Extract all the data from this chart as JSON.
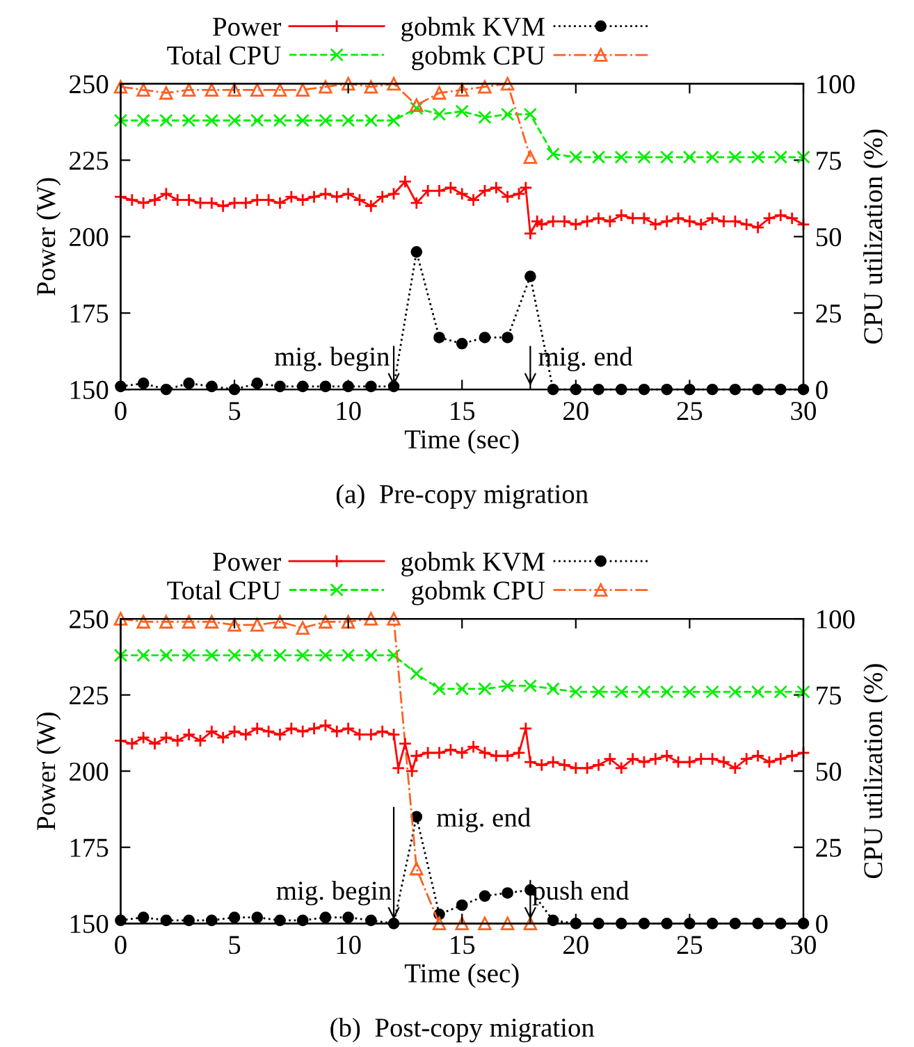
{
  "chart_data": [
    {
      "type": "line",
      "title": "(a)  Pre-copy migration",
      "xlabel": "Time (sec)",
      "ylabel": "Power (W)",
      "y2label": "CPU utilization (%)",
      "xlim": [
        0,
        30
      ],
      "xticks": [
        0,
        5,
        10,
        15,
        20,
        25,
        30
      ],
      "ylim": [
        150,
        250
      ],
      "yticks": [
        150,
        175,
        200,
        225,
        250
      ],
      "y2lim": [
        0,
        100
      ],
      "y2ticks": [
        0,
        25,
        50,
        75,
        100
      ],
      "grid": false,
      "legend": "top",
      "series": [
        {
          "name": "Power",
          "color": "#ff0000",
          "marker": "plus",
          "line_style": "solid",
          "x": [
            0,
            0.5,
            1,
            1.5,
            2,
            2.5,
            3,
            3.5,
            4,
            4.5,
            5,
            5.5,
            6,
            6.5,
            7,
            7.5,
            8,
            8.5,
            9,
            9.5,
            10,
            10.5,
            11,
            11.5,
            12,
            12.5,
            13,
            13.5,
            14,
            14.5,
            15,
            15.5,
            16,
            16.5,
            17,
            17.5,
            17.8,
            18,
            18.3,
            18.5,
            19,
            19.5,
            20,
            20.5,
            21,
            21.5,
            22,
            22.5,
            23,
            23.5,
            24,
            24.5,
            25,
            25.5,
            26,
            26.5,
            27,
            27.5,
            28,
            28.5,
            29,
            29.5,
            30
          ],
          "values": [
            213,
            212,
            211,
            212,
            214,
            212,
            212,
            211,
            211,
            210,
            211,
            211,
            212,
            212,
            211,
            213,
            212,
            213,
            214,
            213,
            214,
            212,
            210,
            213,
            214,
            218,
            211,
            215,
            215,
            216,
            214,
            212,
            215,
            216,
            213,
            214,
            216,
            201,
            205,
            204,
            205,
            205,
            204,
            205,
            206,
            205,
            207,
            206,
            206,
            204,
            205,
            206,
            205,
            204,
            206,
            205,
            205,
            204,
            203,
            206,
            207,
            206,
            204
          ]
        },
        {
          "name": "Total CPU",
          "color": "#00ee00",
          "marker": "cross",
          "line_style": "dashed",
          "axis": "y2",
          "x": [
            0,
            1,
            2,
            3,
            4,
            5,
            6,
            7,
            8,
            9,
            10,
            11,
            12,
            13,
            14,
            15,
            16,
            17,
            18,
            19,
            20,
            21,
            22,
            23,
            24,
            25,
            26,
            27,
            28,
            29,
            30
          ],
          "values": [
            88,
            88,
            88,
            88,
            88,
            88,
            88,
            88,
            88,
            88,
            88,
            88,
            88,
            92,
            90,
            91,
            89,
            90,
            90,
            77,
            76,
            76,
            76,
            76,
            76,
            76,
            76,
            76,
            76,
            76,
            76
          ]
        },
        {
          "name": "gobmk KVM",
          "color": "#000000",
          "marker": "circle",
          "line_style": "dotted",
          "axis": "y2",
          "x": [
            0,
            1,
            2,
            3,
            4,
            5,
            6,
            7,
            8,
            9,
            10,
            11,
            12,
            13,
            14,
            15,
            16,
            17,
            18,
            19,
            20,
            21,
            22,
            23,
            24,
            25,
            26,
            27,
            28,
            29,
            30
          ],
          "values": [
            1,
            2,
            0,
            2,
            1,
            0,
            2,
            1,
            1,
            1,
            1,
            1,
            1,
            45,
            17,
            15,
            17,
            17,
            37,
            0,
            0,
            0,
            0,
            0,
            0,
            0,
            0,
            0,
            0,
            0,
            0
          ]
        },
        {
          "name": "gobmk CPU",
          "color": "#ff6020",
          "marker": "triangle",
          "line_style": "dashdot",
          "axis": "y2",
          "x": [
            0,
            1,
            2,
            3,
            4,
            5,
            6,
            7,
            8,
            9,
            10,
            11,
            12,
            13,
            14,
            15,
            16,
            17,
            18
          ],
          "values": [
            99,
            98,
            97,
            98,
            98,
            98,
            98,
            98,
            98,
            99,
            100,
            99,
            100,
            93,
            97,
            98,
            99,
            100,
            76
          ]
        }
      ],
      "ref_lines": [
        {
          "axis": "x",
          "value": 12,
          "label": "mig. begin"
        },
        {
          "axis": "x",
          "value": 18,
          "label": "mig. end"
        }
      ]
    },
    {
      "type": "line",
      "title": "(b)  Post-copy migration",
      "xlabel": "Time (sec)",
      "ylabel": "Power (W)",
      "y2label": "CPU utilization (%)",
      "xlim": [
        0,
        30
      ],
      "xticks": [
        0,
        5,
        10,
        15,
        20,
        25,
        30
      ],
      "ylim": [
        150,
        250
      ],
      "yticks": [
        150,
        175,
        200,
        225,
        250
      ],
      "y2lim": [
        0,
        100
      ],
      "y2ticks": [
        0,
        25,
        50,
        75,
        100
      ],
      "grid": false,
      "legend": "top",
      "series": [
        {
          "name": "Power",
          "color": "#ff0000",
          "marker": "plus",
          "line_style": "solid",
          "x": [
            0,
            0.5,
            1,
            1.5,
            2,
            2.5,
            3,
            3.5,
            4,
            4.5,
            5,
            5.5,
            6,
            6.5,
            7,
            7.5,
            8,
            8.5,
            9,
            9.5,
            10,
            10.5,
            11,
            11.5,
            12,
            12.2,
            12.5,
            12.8,
            13,
            13.5,
            14,
            14.5,
            15,
            15.5,
            16,
            16.5,
            17,
            17.5,
            17.8,
            18,
            18.5,
            19,
            19.5,
            20,
            20.5,
            21,
            21.5,
            22,
            22.5,
            23,
            23.5,
            24,
            24.5,
            25,
            25.5,
            26,
            26.5,
            27,
            27.5,
            28,
            28.5,
            29,
            29.5,
            30
          ],
          "values": [
            210,
            209,
            211,
            209,
            211,
            210,
            212,
            210,
            213,
            211,
            213,
            212,
            214,
            213,
            212,
            214,
            213,
            214,
            215,
            213,
            214,
            212,
            212,
            213,
            212,
            201,
            209,
            200,
            205,
            206,
            206,
            207,
            206,
            208,
            206,
            205,
            205,
            206,
            214,
            203,
            202,
            203,
            202,
            201,
            201,
            202,
            204,
            201,
            204,
            203,
            204,
            205,
            203,
            203,
            204,
            204,
            203,
            201,
            204,
            205,
            203,
            204,
            205,
            206
          ]
        },
        {
          "name": "Total CPU",
          "color": "#00ee00",
          "marker": "cross",
          "line_style": "dashed",
          "axis": "y2",
          "x": [
            0,
            1,
            2,
            3,
            4,
            5,
            6,
            7,
            8,
            9,
            10,
            11,
            12,
            13,
            14,
            15,
            16,
            17,
            18,
            19,
            20,
            21,
            22,
            23,
            24,
            25,
            26,
            27,
            28,
            29,
            30
          ],
          "values": [
            88,
            88,
            88,
            88,
            88,
            88,
            88,
            88,
            88,
            88,
            88,
            88,
            88,
            82,
            77,
            77,
            77,
            78,
            78,
            77,
            76,
            76,
            76,
            76,
            76,
            76,
            76,
            76,
            76,
            76,
            76
          ]
        },
        {
          "name": "gobmk KVM",
          "color": "#000000",
          "marker": "circle",
          "line_style": "dotted",
          "axis": "y2",
          "x": [
            0,
            1,
            2,
            3,
            4,
            5,
            6,
            7,
            8,
            9,
            10,
            11,
            12,
            13,
            14,
            15,
            16,
            17,
            18,
            19,
            20,
            21,
            22,
            23,
            24,
            25,
            26,
            27,
            28,
            29,
            30
          ],
          "values": [
            1,
            2,
            1,
            1,
            1,
            2,
            2,
            1,
            1,
            2,
            2,
            1,
            0,
            35,
            3,
            6,
            9,
            10,
            11,
            1,
            0,
            0,
            0,
            0,
            0,
            0,
            0,
            0,
            0,
            0,
            0
          ]
        },
        {
          "name": "gobmk CPU",
          "color": "#ff6020",
          "marker": "triangle",
          "line_style": "dashdot",
          "axis": "y2",
          "x": [
            0,
            1,
            2,
            3,
            4,
            5,
            6,
            7,
            8,
            9,
            10,
            11,
            12,
            13,
            14,
            15,
            16,
            17,
            18
          ],
          "values": [
            100,
            99,
            99,
            99,
            99,
            98,
            98,
            99,
            97,
            99,
            99,
            100,
            100,
            18,
            0,
            0,
            0,
            0,
            0
          ]
        }
      ],
      "ref_lines": [
        {
          "axis": "x",
          "value": 12,
          "label": "mig. end"
        },
        {
          "axis": "x",
          "value": 18,
          "label": "push end"
        }
      ],
      "annotations": [
        "mig. begin"
      ]
    }
  ]
}
